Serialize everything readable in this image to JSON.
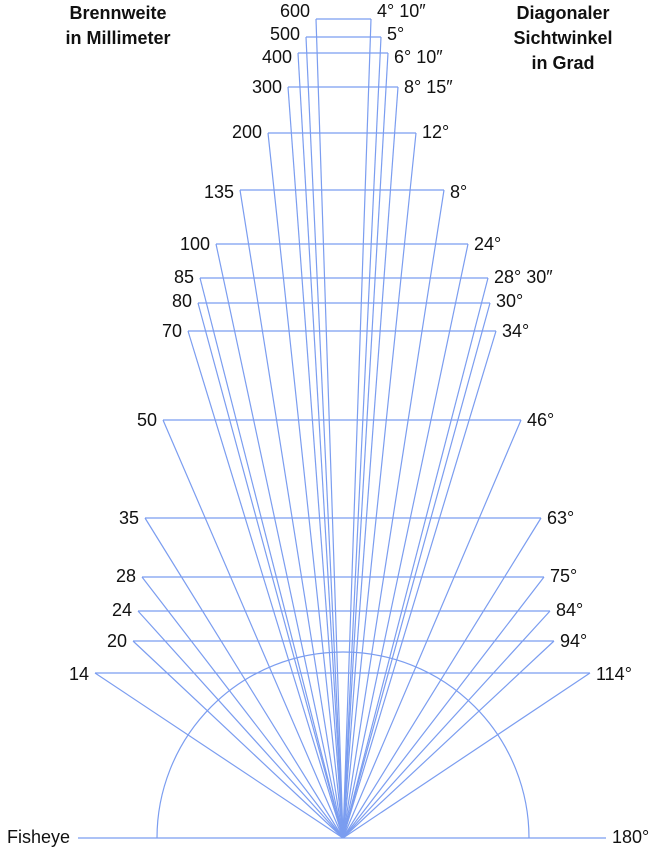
{
  "header_left": [
    "Brennweite",
    "in Millimeter"
  ],
  "header_right": [
    "Diagonaler",
    "Sichtwinkel",
    "in Grad"
  ],
  "rows": [
    {
      "focal": "600",
      "angle": "4° 10″"
    },
    {
      "focal": "500",
      "angle": "5°"
    },
    {
      "focal": "400",
      "angle": "6° 10″"
    },
    {
      "focal": "300",
      "angle": "8° 15″"
    },
    {
      "focal": "200",
      "angle": "12°"
    },
    {
      "focal": "135",
      "angle": "8°"
    },
    {
      "focal": "100",
      "angle": "24°"
    },
    {
      "focal": "85",
      "angle": "28° 30″"
    },
    {
      "focal": "80",
      "angle": "30°"
    },
    {
      "focal": "70",
      "angle": "34°"
    },
    {
      "focal": "50",
      "angle": "46°"
    },
    {
      "focal": "35",
      "angle": "63°"
    },
    {
      "focal": "28",
      "angle": "75°"
    },
    {
      "focal": "24",
      "angle": "84°"
    },
    {
      "focal": "20",
      "angle": "94°"
    },
    {
      "focal": "14",
      "angle": "114°"
    }
  ],
  "fisheye": {
    "focal": "Fisheye",
    "angle": "180°"
  }
}
